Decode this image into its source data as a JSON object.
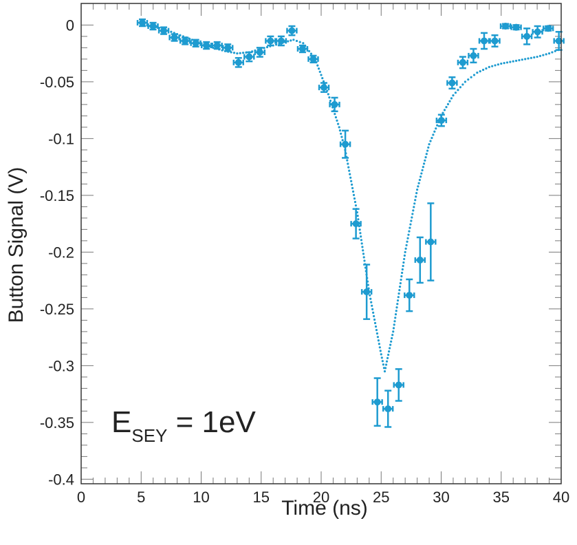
{
  "chart_data": {
    "type": "scatter",
    "xlabel": "Time (ns)",
    "ylabel": "Button Signal (V)",
    "xlim": [
      0,
      40
    ],
    "ylim": [
      -0.404,
      0.019
    ],
    "x_ticks": [
      0,
      5,
      10,
      15,
      20,
      25,
      30,
      35,
      40
    ],
    "x_tick_labels": [
      "0",
      "5",
      "10",
      "15",
      "20",
      "25",
      "30",
      "35",
      "40"
    ],
    "y_ticks": [
      0,
      -0.05,
      -0.1,
      -0.15,
      -0.2,
      -0.25,
      -0.3,
      -0.35,
      -0.4
    ],
    "y_tick_labels": [
      "0",
      "-0.05",
      "-0.1",
      "-0.15",
      "-0.2",
      "-0.25",
      "-0.3",
      "-0.35",
      "-0.4"
    ],
    "grid": false,
    "color": "#1e9bd0",
    "annotation": {
      "main": "E",
      "sub": "SEY",
      "rest": " = 1eV"
    },
    "measurements": {
      "x": [
        5.1,
        5.99,
        6.88,
        7.77,
        8.66,
        9.55,
        10.44,
        11.33,
        12.22,
        13.11,
        14.0,
        14.89,
        15.78,
        16.67,
        17.56,
        18.45,
        19.34,
        20.23,
        21.12,
        22.01,
        22.9,
        23.79,
        24.68,
        25.57,
        26.46,
        27.35,
        28.24,
        29.13,
        30.02,
        30.91,
        31.8,
        32.69,
        33.58,
        34.47,
        35.36,
        36.25,
        37.14,
        38.03,
        38.92,
        39.81
      ],
      "y": [
        0.002,
        -0.001,
        -0.005,
        -0.011,
        -0.014,
        -0.016,
        -0.018,
        -0.018,
        -0.02,
        -0.033,
        -0.028,
        -0.024,
        -0.014,
        -0.014,
        -0.005,
        -0.021,
        -0.03,
        -0.055,
        -0.07,
        -0.105,
        -0.175,
        -0.235,
        -0.332,
        -0.338,
        -0.317,
        -0.238,
        -0.207,
        -0.191,
        -0.084,
        -0.051,
        -0.033,
        -0.027,
        -0.014,
        -0.014,
        -0.001,
        -0.002,
        -0.01,
        -0.006,
        -0.003,
        -0.014
      ],
      "y_err": [
        0.003,
        0.003,
        0.003,
        0.003,
        0.003,
        0.003,
        0.003,
        0.003,
        0.003,
        0.004,
        0.004,
        0.004,
        0.004,
        0.004,
        0.004,
        0.003,
        0.003,
        0.004,
        0.006,
        0.012,
        0.013,
        0.024,
        0.021,
        0.016,
        0.014,
        0.014,
        0.02,
        0.034,
        0.005,
        0.005,
        0.005,
        0.006,
        0.007,
        0.005,
        0.002,
        0.002,
        0.007,
        0.005,
        0.002,
        0.008
      ],
      "x_err": 0.4
    },
    "model_curve": {
      "x": [
        5,
        6,
        7,
        8,
        9,
        10,
        11,
        12,
        13,
        14,
        15,
        16,
        17,
        17.7,
        18.5,
        19.5,
        20.5,
        21.5,
        22,
        23,
        24,
        25,
        25.3,
        26,
        27,
        28,
        29,
        30,
        31,
        32,
        33,
        34,
        35,
        36,
        37,
        38,
        39,
        40
      ],
      "y": [
        0,
        -0.001,
        -0.004,
        -0.008,
        -0.012,
        -0.016,
        -0.02,
        -0.023,
        -0.025,
        -0.024,
        -0.021,
        -0.018,
        -0.015,
        -0.013,
        -0.016,
        -0.03,
        -0.058,
        -0.09,
        -0.11,
        -0.165,
        -0.235,
        -0.29,
        -0.305,
        -0.27,
        -0.2,
        -0.145,
        -0.105,
        -0.08,
        -0.062,
        -0.05,
        -0.042,
        -0.037,
        -0.034,
        -0.032,
        -0.03,
        -0.028,
        -0.025,
        -0.021
      ]
    }
  }
}
